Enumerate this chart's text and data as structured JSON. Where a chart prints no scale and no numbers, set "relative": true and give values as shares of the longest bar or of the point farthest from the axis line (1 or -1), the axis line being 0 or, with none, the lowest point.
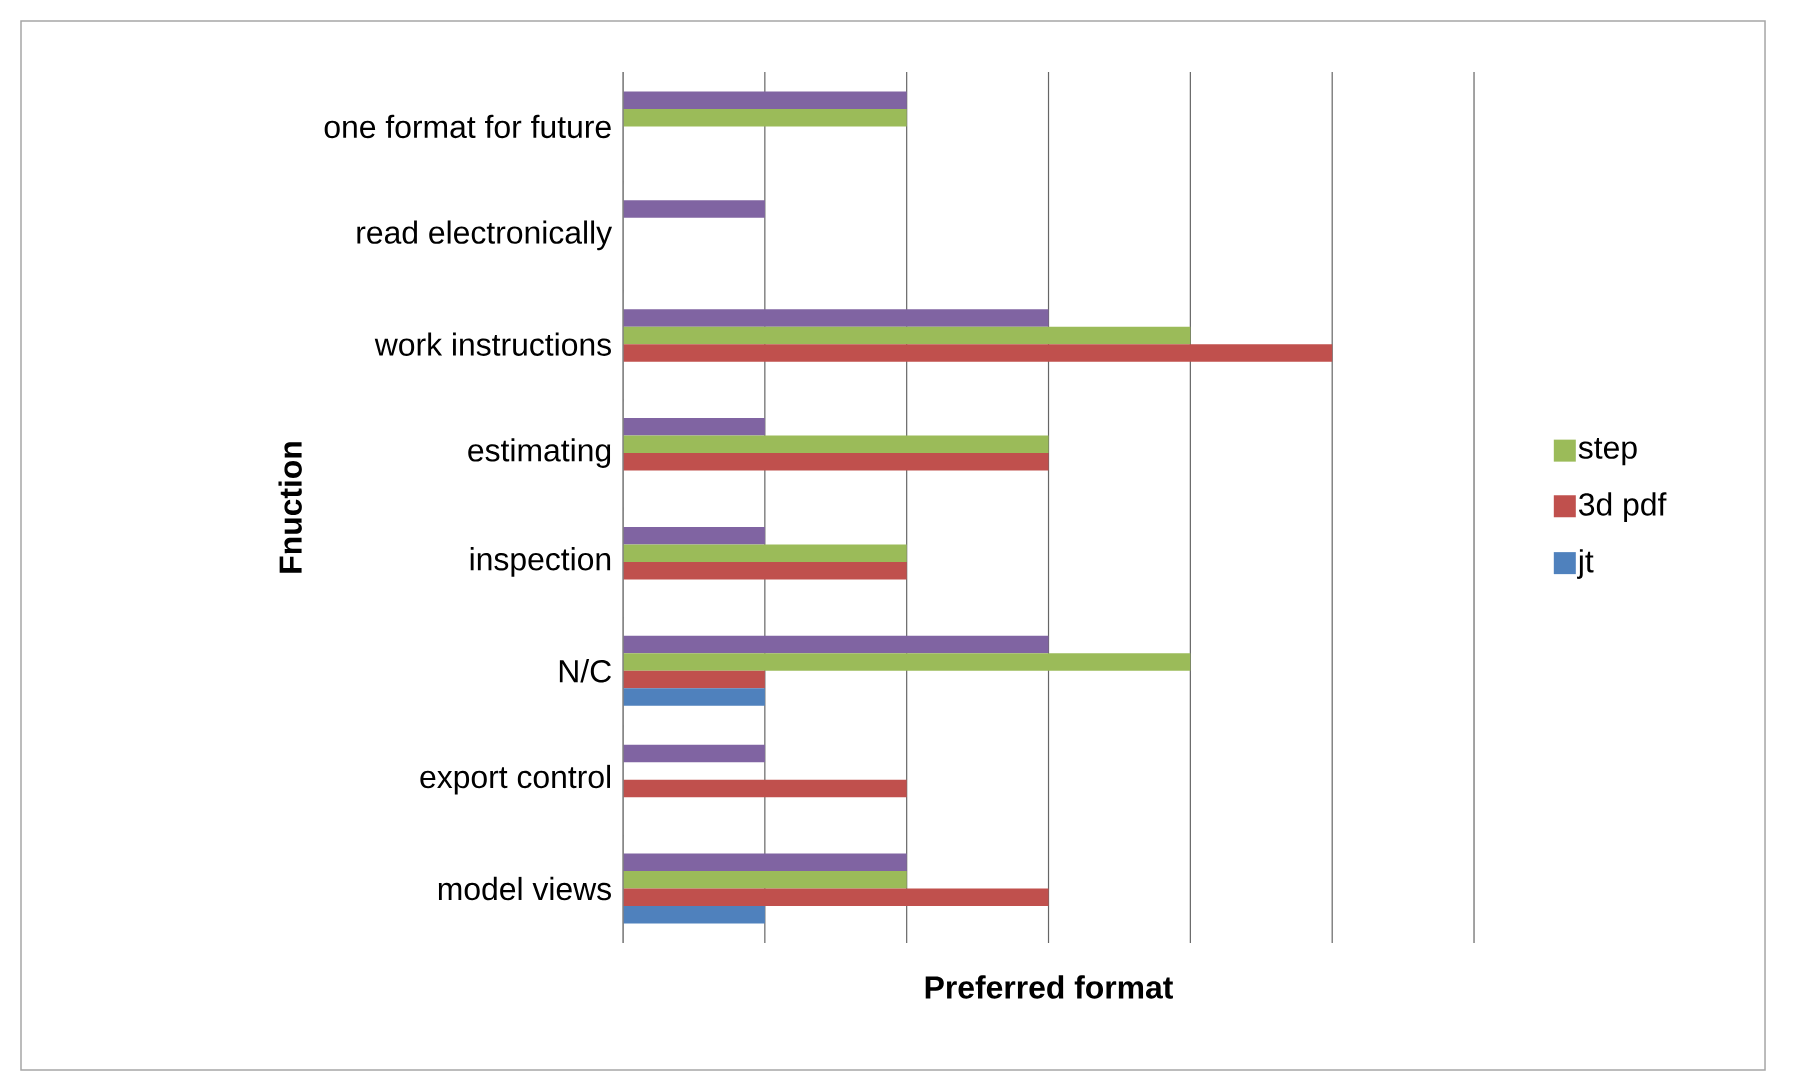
{
  "chart_data": {
    "type": "bar",
    "orientation": "horizontal",
    "relative": true,
    "grid": "x",
    "legend": "right",
    "xlabel": "Preferred format",
    "ylabel": "Fnuction",
    "categories": [
      "one format for future",
      "read electronically",
      "work instructions",
      "estimating",
      "inspection",
      "N/C",
      "export control",
      "model views"
    ],
    "series": [
      {
        "color": "#8064a2",
        "values": [
          0.4,
          0.2,
          0.6,
          0.2,
          0.2,
          0.6,
          0.2,
          0.4
        ]
      },
      {
        "name": "step",
        "color": "#9bbb59",
        "values": [
          0.4,
          null,
          0.8,
          0.6,
          0.4,
          0.8,
          null,
          0.4
        ]
      },
      {
        "name": "3d pdf",
        "color": "#c0504d",
        "values": [
          null,
          null,
          1,
          0.6,
          0.4,
          0.2,
          0.4,
          0.6
        ]
      },
      {
        "name": "jt",
        "color": "#4f81bd",
        "values": [
          null,
          null,
          null,
          null,
          null,
          0.2,
          null,
          0.2
        ]
      }
    ]
  }
}
